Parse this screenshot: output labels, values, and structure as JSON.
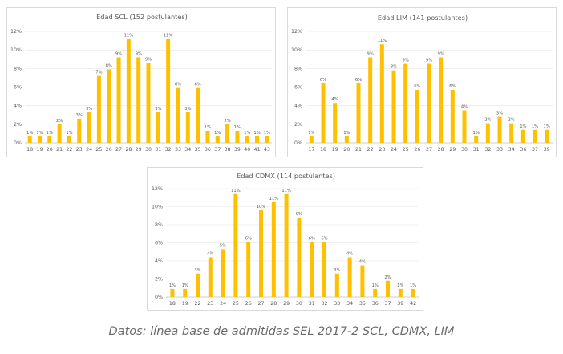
{
  "caption": "Datos: línea base de admitidas SEL 2017-2 SCL, CDMX, LIM",
  "colors": {
    "bar": "#FFC000",
    "grid": "#e3e3e3",
    "axis": "#bfbfbf",
    "text": "#595959"
  },
  "chart_data": [
    {
      "type": "bar",
      "title": "Edad SCL (152 postulantes)",
      "categories": [
        "18",
        "19",
        "20",
        "21",
        "22",
        "23",
        "24",
        "25",
        "26",
        "27",
        "28",
        "29",
        "30",
        "31",
        "32",
        "33",
        "34",
        "35",
        "36",
        "37",
        "38",
        "39",
        "40",
        "41",
        "43"
      ],
      "values": [
        0.7,
        0.7,
        0.7,
        2.0,
        0.7,
        2.6,
        3.3,
        7.2,
        7.9,
        9.2,
        11.2,
        9.2,
        8.6,
        3.3,
        11.2,
        5.9,
        3.3,
        5.9,
        1.3,
        0.7,
        2.0,
        1.3,
        0.7,
        0.7,
        0.7
      ],
      "labels": [
        "1%",
        "1%",
        "1%",
        "2%",
        "1%",
        "3%",
        "3%",
        "7%",
        "8%",
        "9%",
        "11%",
        "9%",
        "9%",
        "3%",
        "11%",
        "6%",
        "3%",
        "6%",
        "1%",
        "1%",
        "2%",
        "1%",
        "1%",
        "1%",
        "1%"
      ],
      "yticks": [
        "0%",
        "2%",
        "4%",
        "6%",
        "8%",
        "10%",
        "12%"
      ],
      "ylim": [
        0,
        12
      ],
      "grid": true
    },
    {
      "type": "bar",
      "title": "Edad LIM (141 postulantes)",
      "categories": [
        "17",
        "18",
        "19",
        "20",
        "21",
        "22",
        "23",
        "24",
        "25",
        "26",
        "27",
        "28",
        "29",
        "30",
        "31",
        "32",
        "33",
        "34",
        "36",
        "37",
        "39"
      ],
      "values": [
        0.7,
        6.4,
        4.3,
        0.7,
        6.4,
        9.2,
        10.6,
        7.8,
        8.5,
        5.7,
        8.5,
        9.2,
        5.7,
        3.5,
        0.7,
        2.1,
        2.8,
        2.1,
        1.4,
        1.4,
        1.4
      ],
      "labels": [
        "1%",
        "6%",
        "4%",
        "1%",
        "6%",
        "9%",
        "11%",
        "8%",
        "9%",
        "6%",
        "9%",
        "9%",
        "6%",
        "4%",
        "1%",
        "2%",
        "3%",
        "2%",
        "1%",
        "1%",
        "1%"
      ],
      "yticks": [
        "0%",
        "2%",
        "4%",
        "6%",
        "8%",
        "10%",
        "12%"
      ],
      "ylim": [
        0,
        12
      ],
      "grid": true
    },
    {
      "type": "bar",
      "title": "Edad CDMX (114 postulantes)",
      "categories": [
        "18",
        "19",
        "22",
        "23",
        "24",
        "25",
        "26",
        "27",
        "28",
        "29",
        "30",
        "31",
        "32",
        "33",
        "34",
        "35",
        "36",
        "37",
        "39",
        "42"
      ],
      "values": [
        0.9,
        0.9,
        2.6,
        4.4,
        5.3,
        11.4,
        6.1,
        9.6,
        10.5,
        11.4,
        8.8,
        6.1,
        6.1,
        2.6,
        4.4,
        3.5,
        0.9,
        1.8,
        0.9,
        0.9
      ],
      "labels": [
        "1%",
        "1%",
        "3%",
        "4%",
        "5%",
        "11%",
        "6%",
        "10%",
        "11%",
        "11%",
        "9%",
        "6%",
        "6%",
        "3%",
        "4%",
        "4%",
        "1%",
        "2%",
        "1%",
        "1%"
      ],
      "yticks": [
        "0%",
        "2%",
        "4%",
        "6%",
        "8%",
        "10%",
        "12%"
      ],
      "ylim": [
        0,
        12
      ],
      "grid": true
    }
  ]
}
